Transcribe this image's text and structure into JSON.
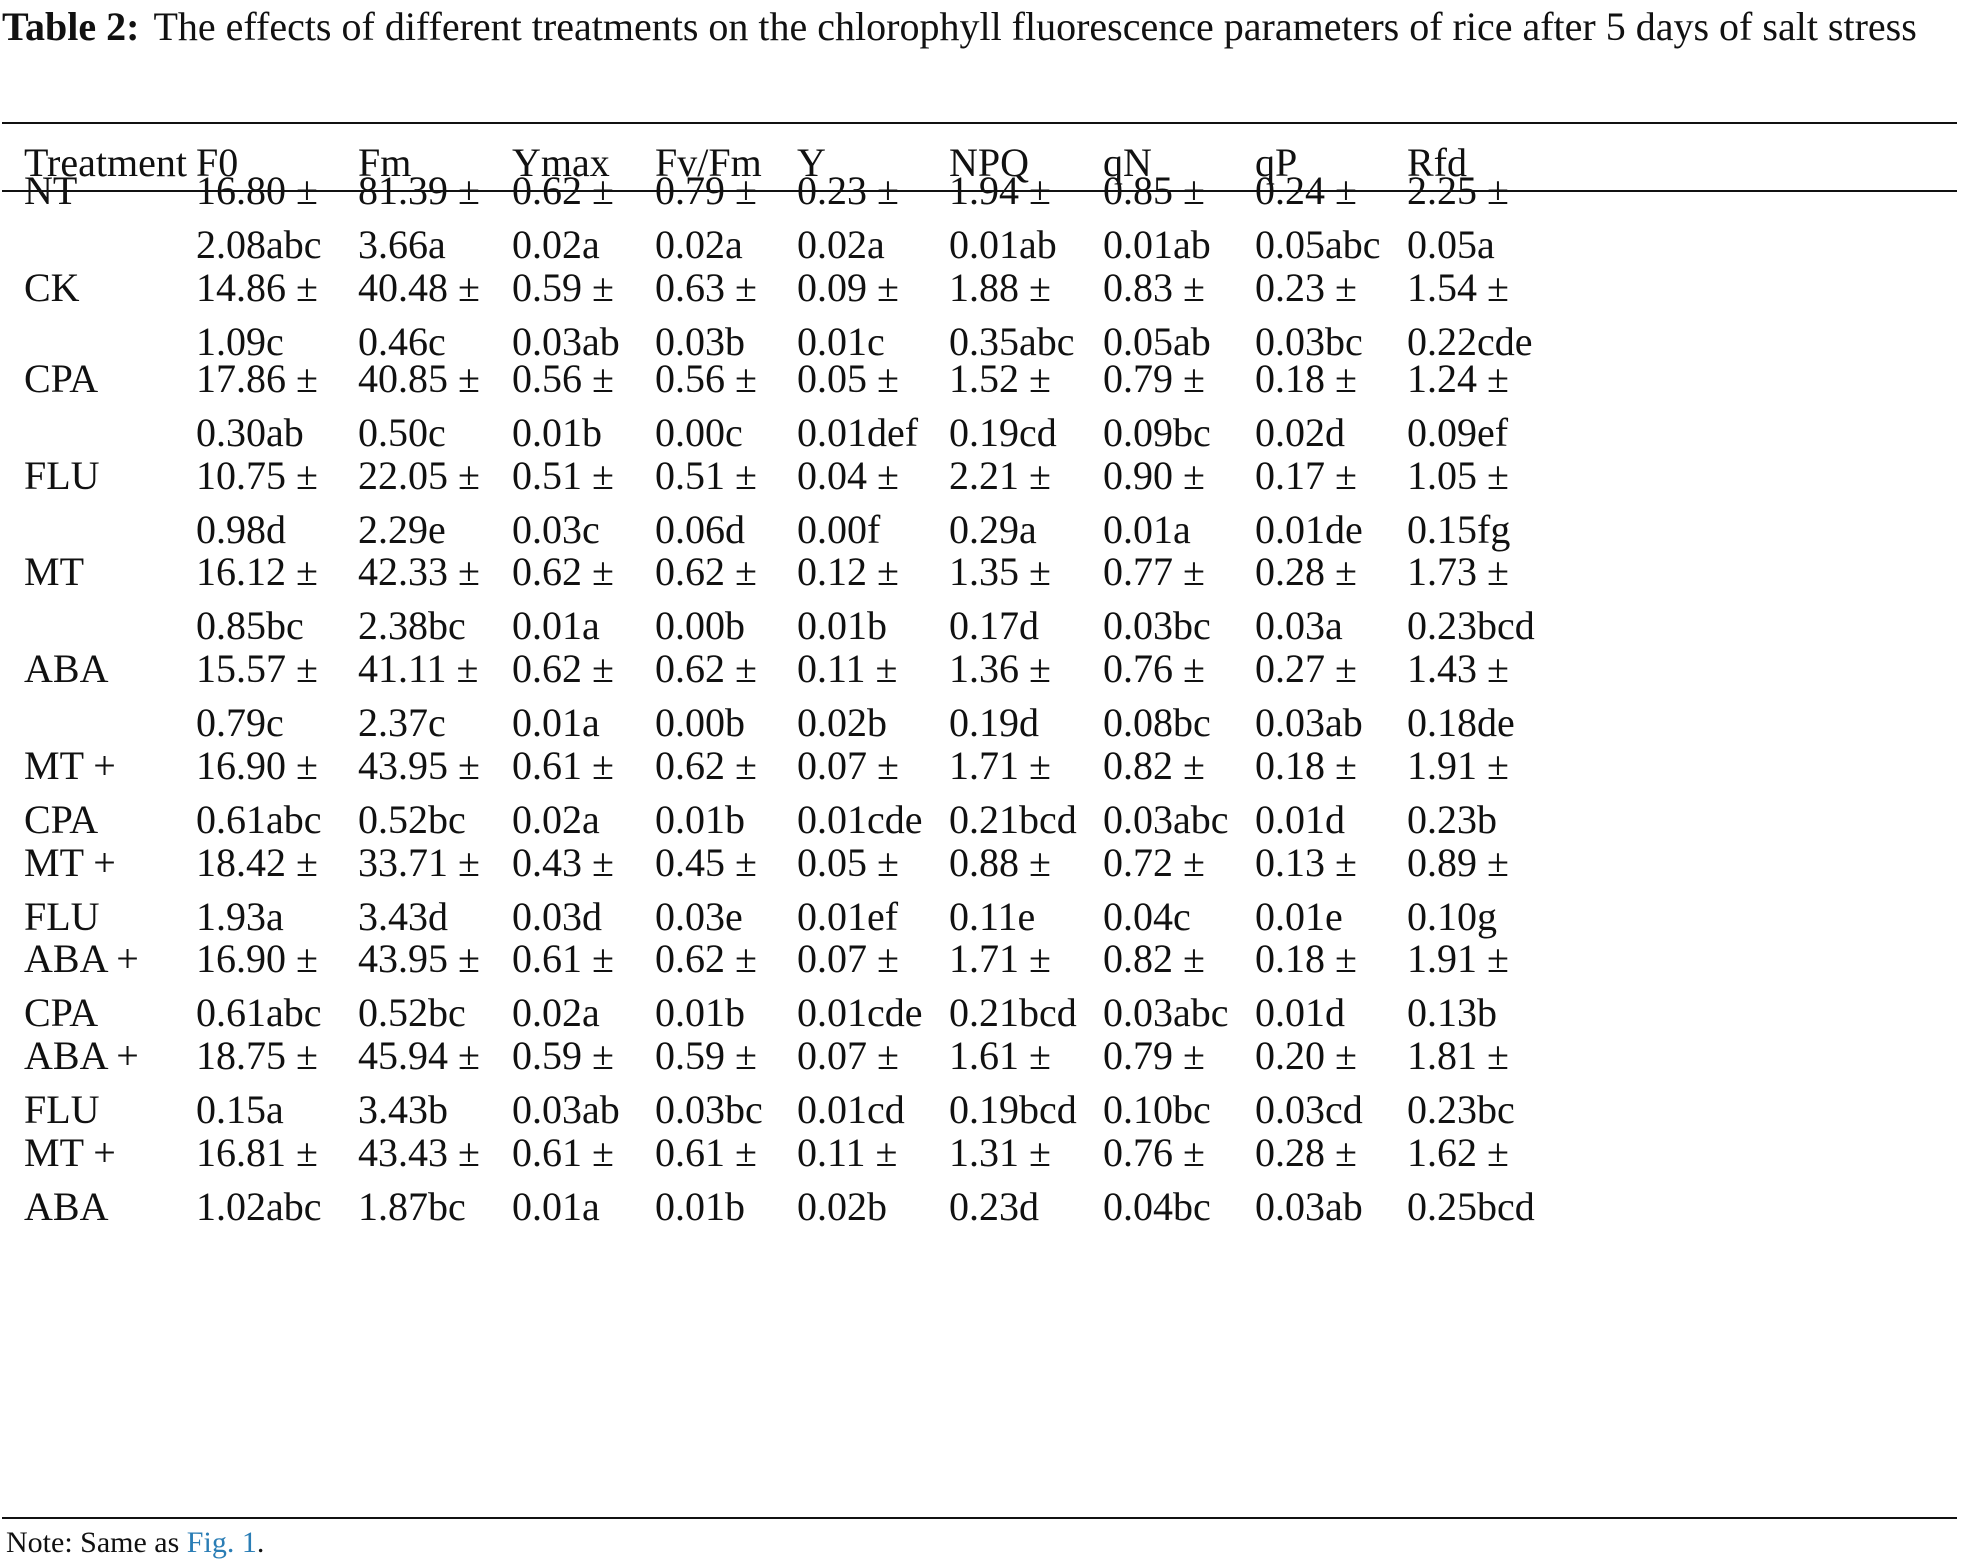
{
  "caption": {
    "label": "Table 2:",
    "text": "The effects of different treatments on the chlorophyll fluorescence parameters of rice after 5 days of salt stress"
  },
  "columns": [
    "Treatment",
    "F0",
    "Fm",
    "Ymax",
    "Fv/Fm",
    "Y",
    "NPQ",
    "qN",
    "qP",
    "Rfd"
  ],
  "rows": [
    {
      "treatment": [
        "NT"
      ],
      "values": [
        [
          "16.80 ±",
          "2.08abc"
        ],
        [
          "81.39 ±",
          "3.66a"
        ],
        [
          "0.62 ±",
          "0.02a"
        ],
        [
          "0.79 ±",
          "0.02a"
        ],
        [
          "0.23 ±",
          "0.02a"
        ],
        [
          "1.94 ±",
          "0.01ab"
        ],
        [
          "0.85 ±",
          "0.01ab"
        ],
        [
          "0.24 ±",
          "0.05abc"
        ],
        [
          "2.25 ±",
          "0.05a"
        ]
      ]
    },
    {
      "treatment": [
        "CK"
      ],
      "values": [
        [
          "14.86 ±",
          "1.09c"
        ],
        [
          "40.48 ±",
          "0.46c"
        ],
        [
          "0.59 ±",
          "0.03ab"
        ],
        [
          "0.63 ±",
          "0.03b"
        ],
        [
          "0.09 ±",
          "0.01c"
        ],
        [
          "1.88 ±",
          "0.35abc"
        ],
        [
          "0.83 ±",
          "0.05ab"
        ],
        [
          "0.23 ±",
          "0.03bc"
        ],
        [
          "1.54 ±",
          "0.22cde"
        ]
      ]
    },
    {
      "treatment": [
        "CPA"
      ],
      "values": [
        [
          "17.86 ±",
          "0.30ab"
        ],
        [
          "40.85 ±",
          "0.50c"
        ],
        [
          "0.56 ±",
          "0.01b"
        ],
        [
          "0.56 ±",
          "0.00c"
        ],
        [
          "0.05 ±",
          "0.01def"
        ],
        [
          "1.52 ±",
          "0.19cd"
        ],
        [
          "0.79 ±",
          "0.09bc"
        ],
        [
          "0.18 ±",
          "0.02d"
        ],
        [
          "1.24 ±",
          "0.09ef"
        ]
      ]
    },
    {
      "treatment": [
        "FLU"
      ],
      "values": [
        [
          "10.75 ±",
          "0.98d"
        ],
        [
          "22.05 ±",
          "2.29e"
        ],
        [
          "0.51 ±",
          "0.03c"
        ],
        [
          "0.51 ±",
          "0.06d"
        ],
        [
          "0.04 ±",
          "0.00f"
        ],
        [
          "2.21 ±",
          "0.29a"
        ],
        [
          "0.90 ±",
          "0.01a"
        ],
        [
          "0.17 ±",
          "0.01de"
        ],
        [
          "1.05 ±",
          "0.15fg"
        ]
      ]
    },
    {
      "treatment": [
        "MT"
      ],
      "values": [
        [
          "16.12 ±",
          "0.85bc"
        ],
        [
          "42.33 ±",
          "2.38bc"
        ],
        [
          "0.62 ±",
          "0.01a"
        ],
        [
          "0.62 ±",
          "0.00b"
        ],
        [
          "0.12 ±",
          "0.01b"
        ],
        [
          "1.35 ±",
          "0.17d"
        ],
        [
          "0.77 ±",
          "0.03bc"
        ],
        [
          "0.28 ±",
          "0.03a"
        ],
        [
          "1.73 ±",
          "0.23bcd"
        ]
      ]
    },
    {
      "treatment": [
        "ABA"
      ],
      "values": [
        [
          "15.57 ±",
          "0.79c"
        ],
        [
          "41.11 ±",
          "2.37c"
        ],
        [
          "0.62 ±",
          "0.01a"
        ],
        [
          "0.62 ±",
          "0.00b"
        ],
        [
          "0.11 ±",
          "0.02b"
        ],
        [
          "1.36 ±",
          "0.19d"
        ],
        [
          "0.76 ±",
          "0.08bc"
        ],
        [
          "0.27 ±",
          "0.03ab"
        ],
        [
          "1.43 ±",
          "0.18de"
        ]
      ]
    },
    {
      "treatment": [
        "MT +",
        "CPA"
      ],
      "values": [
        [
          "16.90 ±",
          "0.61abc"
        ],
        [
          "43.95 ±",
          "0.52bc"
        ],
        [
          "0.61 ±",
          "0.02a"
        ],
        [
          "0.62 ±",
          "0.01b"
        ],
        [
          "0.07 ±",
          "0.01cde"
        ],
        [
          "1.71 ±",
          "0.21bcd"
        ],
        [
          "0.82 ±",
          "0.03abc"
        ],
        [
          "0.18 ±",
          "0.01d"
        ],
        [
          "1.91 ±",
          "0.23b"
        ]
      ]
    },
    {
      "treatment": [
        "MT +",
        "FLU"
      ],
      "values": [
        [
          "18.42 ±",
          "1.93a"
        ],
        [
          "33.71 ±",
          "3.43d"
        ],
        [
          "0.43 ±",
          "0.03d"
        ],
        [
          "0.45 ±",
          "0.03e"
        ],
        [
          "0.05 ±",
          "0.01ef"
        ],
        [
          "0.88 ±",
          "0.11e"
        ],
        [
          "0.72 ±",
          "0.04c"
        ],
        [
          "0.13 ±",
          "0.01e"
        ],
        [
          "0.89 ±",
          "0.10g"
        ]
      ]
    },
    {
      "treatment": [
        "ABA +",
        "CPA"
      ],
      "values": [
        [
          "16.90 ±",
          "0.61abc"
        ],
        [
          "43.95 ±",
          "0.52bc"
        ],
        [
          "0.61 ±",
          "0.02a"
        ],
        [
          "0.62 ±",
          "0.01b"
        ],
        [
          "0.07 ±",
          "0.01cde"
        ],
        [
          "1.71 ±",
          "0.21bcd"
        ],
        [
          "0.82 ±",
          "0.03abc"
        ],
        [
          "0.18 ±",
          "0.01d"
        ],
        [
          "1.91 ±",
          "0.13b"
        ]
      ]
    },
    {
      "treatment": [
        "ABA +",
        "FLU"
      ],
      "values": [
        [
          "18.75 ±",
          "0.15a"
        ],
        [
          "45.94 ±",
          "3.43b"
        ],
        [
          "0.59 ±",
          "0.03ab"
        ],
        [
          "0.59 ±",
          "0.03bc"
        ],
        [
          "0.07 ±",
          "0.01cd"
        ],
        [
          "1.61 ±",
          "0.19bcd"
        ],
        [
          "0.79 ±",
          "0.10bc"
        ],
        [
          "0.20 ±",
          "0.03cd"
        ],
        [
          "1.81 ±",
          "0.23bc"
        ]
      ]
    },
    {
      "treatment": [
        "MT +",
        "ABA"
      ],
      "values": [
        [
          "16.81 ±",
          "1.02abc"
        ],
        [
          "43.43 ±",
          "1.87bc"
        ],
        [
          "0.61 ±",
          "0.01a"
        ],
        [
          "0.61 ±",
          "0.01b"
        ],
        [
          "0.11 ±",
          "0.02b"
        ],
        [
          "1.31 ±",
          "0.23d"
        ],
        [
          "0.76 ±",
          "0.04bc"
        ],
        [
          "0.28 ±",
          "0.03ab"
        ],
        [
          "1.62 ±",
          "0.25bcd"
        ]
      ]
    }
  ],
  "note": {
    "prefix": "Note: Same as ",
    "link": "Fig. 1",
    "suffix": "."
  }
}
